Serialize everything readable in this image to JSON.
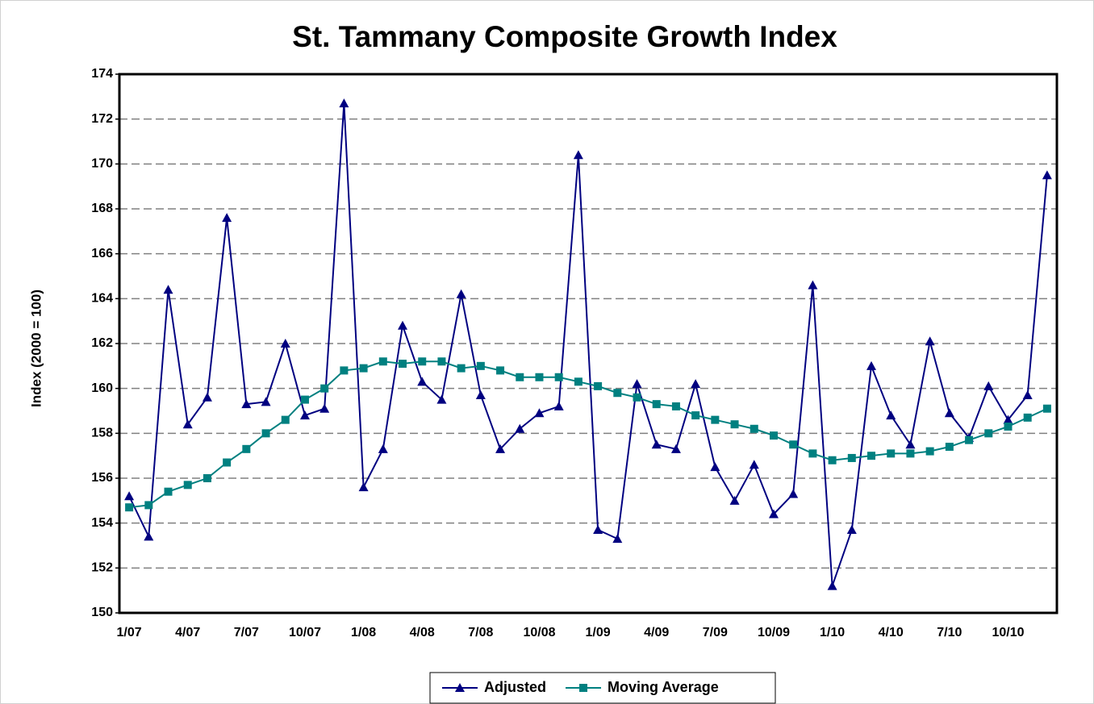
{
  "chart_data": {
    "type": "line",
    "title": "St. Tammany Composite Growth Index",
    "ylabel": "Index (2000 = 100)",
    "categories": [
      "1/07",
      null,
      null,
      "4/07",
      null,
      null,
      "7/07",
      null,
      null,
      "10/07",
      null,
      null,
      "1/08",
      null,
      null,
      "4/08",
      null,
      null,
      "7/08",
      null,
      null,
      "10/08",
      null,
      null,
      "1/09",
      null,
      null,
      "4/09",
      null,
      null,
      "7/09",
      null,
      null,
      "10/09",
      null,
      null,
      "1/10",
      null,
      null,
      "4/10",
      null,
      null,
      "7/10",
      null,
      null,
      "10/10",
      null,
      null
    ],
    "series": [
      {
        "name": "Adjusted",
        "color": "#000080",
        "marker": "triangle",
        "values": [
          155.2,
          153.4,
          164.4,
          158.4,
          159.6,
          167.6,
          159.3,
          159.4,
          162.0,
          158.8,
          159.1,
          172.7,
          155.6,
          157.3,
          162.8,
          160.3,
          159.5,
          164.2,
          159.7,
          157.3,
          158.2,
          158.9,
          159.2,
          170.4,
          153.7,
          153.3,
          160.2,
          157.5,
          157.3,
          160.2,
          156.5,
          155.0,
          156.6,
          154.4,
          155.3,
          164.6,
          151.2,
          153.7,
          161.0,
          158.8,
          157.5,
          162.1,
          158.9,
          157.8,
          160.1,
          158.6,
          159.7,
          169.5
        ]
      },
      {
        "name": "Moving Average",
        "color": "#008080",
        "marker": "square",
        "values": [
          154.7,
          154.8,
          155.4,
          155.7,
          156.0,
          156.7,
          157.3,
          158.0,
          158.6,
          159.5,
          160.0,
          160.8,
          160.9,
          161.2,
          161.1,
          161.2,
          161.2,
          160.9,
          161.0,
          160.8,
          160.5,
          160.5,
          160.5,
          160.3,
          160.1,
          159.8,
          159.6,
          159.3,
          159.2,
          158.8,
          158.6,
          158.4,
          158.2,
          157.9,
          157.5,
          157.1,
          156.8,
          156.9,
          157.0,
          157.1,
          157.1,
          157.2,
          157.4,
          157.7,
          158.0,
          158.3,
          158.7,
          159.1
        ]
      }
    ],
    "ylim": [
      150,
      174
    ],
    "yticks": [
      150,
      152,
      154,
      156,
      158,
      160,
      162,
      164,
      166,
      168,
      170,
      172,
      174
    ],
    "grid": true,
    "legend": "bottom"
  }
}
